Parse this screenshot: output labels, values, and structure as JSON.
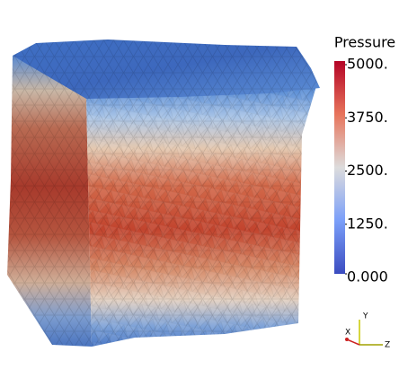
{
  "colorbar": {
    "title": "Pressure",
    "range": [
      0,
      5000
    ],
    "ticks": [
      {
        "value": 5000,
        "label": "5000."
      },
      {
        "value": 3750,
        "label": "3750."
      },
      {
        "value": 2500,
        "label": "2500."
      },
      {
        "value": 1250,
        "label": "1250."
      },
      {
        "value": 0,
        "label": "0.000"
      }
    ]
  },
  "axes_triad": {
    "y": "Y",
    "x": "X",
    "z": "Z"
  }
}
